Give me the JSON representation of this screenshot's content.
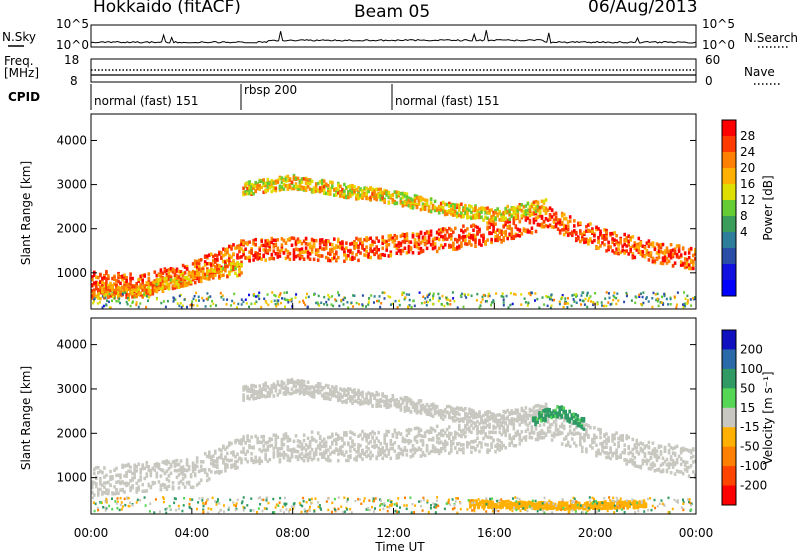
{
  "header": {
    "station": "Hokkaido (fitACF)",
    "beam": "Beam 05",
    "date": "06/Aug/2013"
  },
  "side_labels": {
    "nsky": "N.Sky",
    "nsearch": "N.Search",
    "freq": "Freq.",
    "freq_unit": "[MHz]",
    "nave": "Nave",
    "cpid": "CPID"
  },
  "noise_panel": {
    "left_ticks": [
      "10^5",
      "10^0"
    ],
    "right_ticks": [
      "10^5",
      "10^0"
    ]
  },
  "freq_panel": {
    "left_ticks": [
      "18",
      "8"
    ],
    "right_ticks": [
      "60",
      "0"
    ]
  },
  "cpid_segments": [
    {
      "label": "normal (fast) 151",
      "start_hour": 0,
      "end_hour": 6
    },
    {
      "label": "rbsp 200",
      "start_hour": 6,
      "end_hour": 12
    },
    {
      "label": "normal (fast) 151",
      "start_hour": 12,
      "end_hour": 24
    }
  ],
  "x_axis": {
    "label": "Time UT",
    "ticks": [
      "00:00",
      "04:00",
      "08:00",
      "12:00",
      "16:00",
      "20:00",
      "00:00"
    ],
    "range_hours": [
      0,
      24
    ]
  },
  "power_panel": {
    "ylabel": "Slant Range [km]",
    "yticks": [
      "1000",
      "2000",
      "3000",
      "4000"
    ],
    "ylim": [
      180,
      4600
    ],
    "colorbar_label": "Power [dB]",
    "colorbar_ticks": [
      "28",
      "24",
      "20",
      "16",
      "12",
      "8",
      "4"
    ],
    "colorbar_colors": [
      "#ff0000",
      "#ff3a00",
      "#ff7f00",
      "#ffb000",
      "#dede00",
      "#66cc33",
      "#3a9e5a",
      "#2e7d9a",
      "#2a4ea8",
      "#1010e0",
      "#0000ff"
    ]
  },
  "velocity_panel": {
    "ylabel": "Slant Range [km]",
    "yticks": [
      "1000",
      "2000",
      "3000",
      "4000"
    ],
    "ylim": [
      180,
      4600
    ],
    "colorbar_label": "Velocity [m s⁻¹]",
    "colorbar_ticks": [
      "200",
      "100",
      "50",
      "15",
      "-15",
      "-50",
      "-100",
      "-200"
    ],
    "colorbar_colors": [
      "#1010c0",
      "#2a6aa8",
      "#2f9a64",
      "#55d655",
      "#c8c8c0",
      "#ffb000",
      "#ff8000",
      "#ff4400",
      "#ff0000"
    ]
  },
  "chart_data": {
    "type": "heatmap",
    "title": "Hokkaido (fitACF)",
    "xlabel": "Time UT",
    "ylabel": "Slant Range [km]",
    "xlim_hours": [
      0,
      24
    ],
    "ylim_km": [
      180,
      4600
    ],
    "power_bands": [
      {
        "name": "main echo band",
        "points": [
          [
            0,
            800
          ],
          [
            2,
            700
          ],
          [
            4,
            1000
          ],
          [
            6,
            1500
          ],
          [
            8,
            1550
          ],
          [
            10,
            1500
          ],
          [
            12,
            1600
          ],
          [
            14,
            1750
          ],
          [
            16,
            1900
          ],
          [
            18,
            2250
          ],
          [
            20,
            1800
          ],
          [
            22,
            1500
          ],
          [
            24,
            1300
          ]
        ],
        "width_km": 500,
        "power_db": 26
      },
      {
        "name": "upper band",
        "points": [
          [
            6,
            2900
          ],
          [
            8,
            3050
          ],
          [
            10,
            2850
          ],
          [
            12,
            2700
          ],
          [
            14,
            2450
          ],
          [
            16,
            2300
          ],
          [
            18,
            2500
          ]
        ],
        "width_km": 300,
        "power_db": 20
      },
      {
        "name": "low band",
        "points": [
          [
            0,
            550
          ],
          [
            2,
            600
          ],
          [
            4,
            900
          ],
          [
            6,
            1100
          ]
        ],
        "width_km": 300,
        "power_db": 22
      }
    ],
    "velocity_bands": [
      {
        "name": "main echo band",
        "points": [
          [
            0,
            900
          ],
          [
            4,
            1100
          ],
          [
            6,
            1600
          ],
          [
            8,
            1700
          ],
          [
            10,
            1700
          ],
          [
            12,
            1750
          ],
          [
            14,
            1850
          ],
          [
            16,
            1900
          ],
          [
            18,
            2200
          ],
          [
            20,
            1800
          ],
          [
            22,
            1500
          ],
          [
            24,
            1300
          ]
        ],
        "width_km": 650,
        "velocity": 0
      },
      {
        "name": "upper band",
        "points": [
          [
            6,
            2900
          ],
          [
            8,
            3050
          ],
          [
            10,
            2850
          ],
          [
            12,
            2700
          ],
          [
            14,
            2450
          ],
          [
            16,
            2300
          ],
          [
            18,
            2500
          ]
        ],
        "width_km": 320,
        "velocity": 0
      },
      {
        "name": "green patch",
        "points": [
          [
            17.5,
            2300
          ],
          [
            18.5,
            2500
          ],
          [
            19.5,
            2200
          ]
        ],
        "width_km": 250,
        "velocity": 40
      },
      {
        "name": "ground band",
        "points": [
          [
            15,
            400
          ],
          [
            19,
            350
          ],
          [
            22,
            400
          ]
        ],
        "width_km": 150,
        "velocity": -30
      }
    ]
  }
}
